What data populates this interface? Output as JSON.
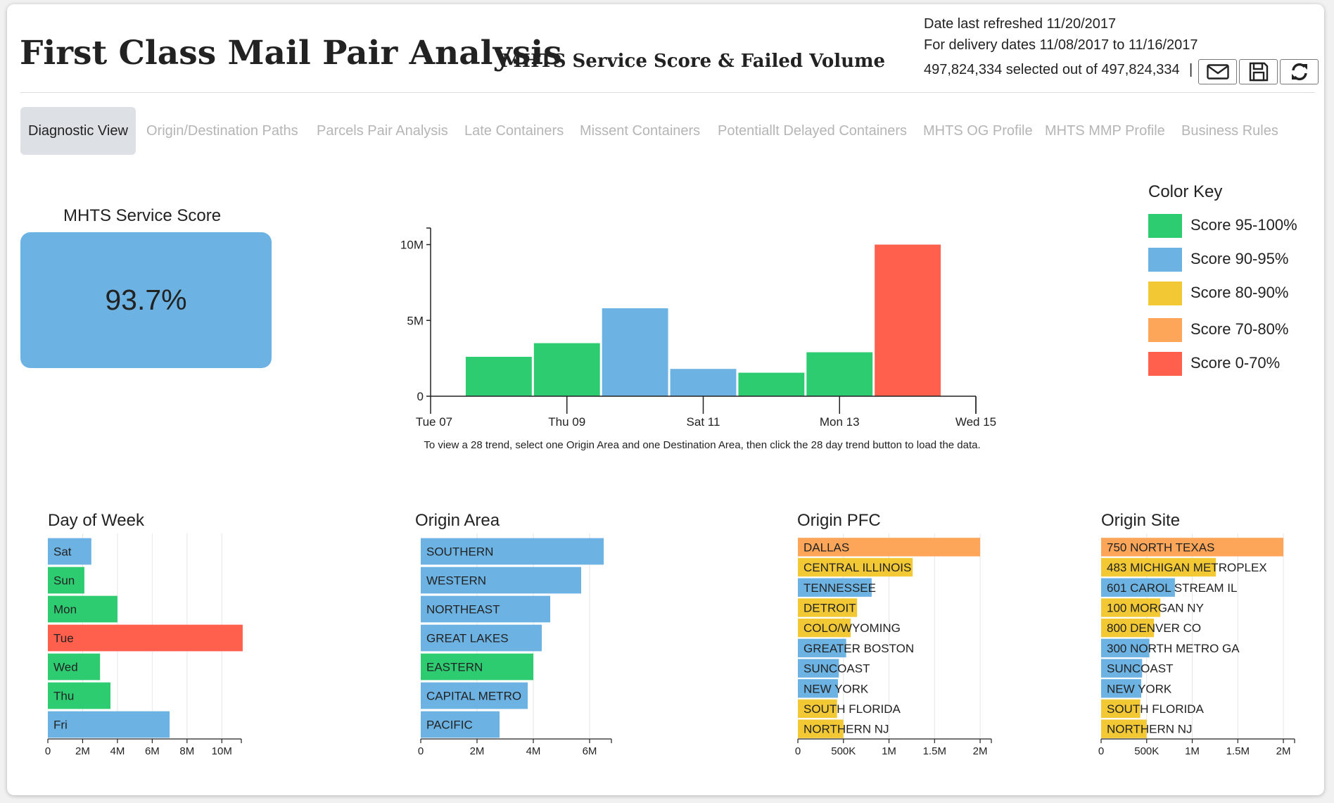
{
  "header": {
    "title": "First Class Mail Pair Analysis",
    "subtitle": "MHTS Service Score & Failed Volume",
    "refreshed": "Date last refreshed 11/20/2017",
    "delivery_dates": "For delivery dates 11/08/2017 to 11/16/2017",
    "selected": "497,824,334 selected out of 497,824,334",
    "separator": "|",
    "icons": [
      "envelope-icon",
      "save-icon",
      "refresh-icon"
    ]
  },
  "tabs": [
    {
      "label": "Diagnostic View",
      "active": true
    },
    {
      "label": "Origin/Destination Paths"
    },
    {
      "label": "Parcels Pair Analysis"
    },
    {
      "label": "Late Containers"
    },
    {
      "label": "Missent Containers"
    },
    {
      "label": "Potentiallt Delayed Containers"
    },
    {
      "label": "MHTS OG Profile"
    },
    {
      "label": "MHTS MMP Profile"
    },
    {
      "label": "Business Rules"
    }
  ],
  "score": {
    "label": "MHTS Service Score",
    "value": "93.7%",
    "color": "#6cb3e3"
  },
  "colors": {
    "green": "#2ecc71",
    "blue": "#6cb3e3",
    "yellow": "#f2c935",
    "orange": "#fda65a",
    "red": "#ff5f4d"
  },
  "color_key": {
    "title": "Color Key",
    "items": [
      {
        "label": "Score 95-100%",
        "color": "#2ecc71"
      },
      {
        "label": "Score 90-95%",
        "color": "#6cb3e3"
      },
      {
        "label": "Score 80-90%",
        "color": "#f2c935"
      },
      {
        "label": "Score 70-80%",
        "color": "#fda65a"
      },
      {
        "label": "Score 0-70%",
        "color": "#ff5f4d"
      }
    ]
  },
  "trend_note": "To view a 28 trend, select one Origin Area and one Destination Area, then click the 28 day trend button to load the data.",
  "chart_data": [
    {
      "type": "bar",
      "title": "",
      "x_ticks": [
        "Tue 07",
        "Thu 09",
        "Sat 11",
        "Mon 13",
        "Wed 15"
      ],
      "y_ticks": [
        "0",
        "5M",
        "10M"
      ],
      "ylim": [
        0,
        11000000
      ],
      "bars": [
        {
          "date": "2017-11-08",
          "value": 2600000,
          "color": "green"
        },
        {
          "date": "2017-11-09",
          "value": 3500000,
          "color": "green"
        },
        {
          "date": "2017-11-10",
          "value": 5800000,
          "color": "blue"
        },
        {
          "date": "2017-11-11",
          "value": 1800000,
          "color": "blue"
        },
        {
          "date": "2017-11-12",
          "value": 1550000,
          "color": "green"
        },
        {
          "date": "2017-11-13",
          "value": 2900000,
          "color": "green"
        },
        {
          "date": "2017-11-14",
          "value": 10000000,
          "color": "red"
        }
      ]
    },
    {
      "type": "bar",
      "orientation": "horizontal",
      "title": "Day of Week",
      "x_ticks": [
        "0",
        "2M",
        "4M",
        "6M",
        "8M",
        "10M"
      ],
      "xlim": [
        0,
        11000000
      ],
      "categories": [
        "Sat",
        "Sun",
        "Mon",
        "Tue",
        "Wed",
        "Thu",
        "Fri"
      ],
      "values": [
        2500000,
        2100000,
        4000000,
        11200000,
        3000000,
        3600000,
        7000000
      ],
      "colors": [
        "blue",
        "green",
        "green",
        "red",
        "green",
        "green",
        "blue"
      ]
    },
    {
      "type": "bar",
      "orientation": "horizontal",
      "title": "Origin Area",
      "x_ticks": [
        "0",
        "2M",
        "4M",
        "6M"
      ],
      "xlim": [
        0,
        6700000
      ],
      "categories": [
        "SOUTHERN",
        "WESTERN",
        "NORTHEAST",
        "GREAT LAKES",
        "EASTERN",
        "CAPITAL METRO",
        "PACIFIC"
      ],
      "values": [
        6500000,
        5700000,
        4600000,
        4300000,
        4000000,
        3800000,
        2800000
      ],
      "colors": [
        "blue",
        "blue",
        "blue",
        "blue",
        "green",
        "blue",
        "blue"
      ]
    },
    {
      "type": "bar",
      "orientation": "horizontal",
      "title": "Origin PFC",
      "x_ticks": [
        "0",
        "500K",
        "1M",
        "1.5M",
        "2M"
      ],
      "xlim": [
        0,
        2100000
      ],
      "categories": [
        "DALLAS",
        "CENTRAL ILLINOIS",
        "TENNESSEE",
        "DETROIT",
        "COLO/WYOMING",
        "GREATER BOSTON",
        "SUNCOAST",
        "NEW YORK",
        "SOUTH FLORIDA",
        "NORTHERN NJ"
      ],
      "values": [
        2000000,
        1260000,
        810000,
        650000,
        580000,
        530000,
        450000,
        440000,
        430000,
        500000
      ],
      "colors": [
        "orange",
        "yellow",
        "blue",
        "yellow",
        "yellow",
        "blue",
        "blue",
        "blue",
        "yellow",
        "yellow"
      ]
    },
    {
      "type": "bar",
      "orientation": "horizontal",
      "title": "Origin Site",
      "x_ticks": [
        "0",
        "500K",
        "1M",
        "1.5M",
        "2M"
      ],
      "xlim": [
        0,
        2100000
      ],
      "categories": [
        "750 NORTH TEXAS",
        "483 MICHIGAN METROPLEX",
        "601 CAROL STREAM IL",
        "100 MORGAN NY",
        "800 DENVER CO",
        "300 NORTH METRO GA",
        "SUNCOAST",
        "NEW YORK",
        "SOUTH FLORIDA",
        "NORTHERN NJ"
      ],
      "values": [
        2000000,
        1260000,
        810000,
        650000,
        580000,
        530000,
        450000,
        440000,
        430000,
        500000
      ],
      "colors": [
        "orange",
        "yellow",
        "blue",
        "yellow",
        "yellow",
        "blue",
        "blue",
        "blue",
        "yellow",
        "yellow"
      ]
    }
  ]
}
